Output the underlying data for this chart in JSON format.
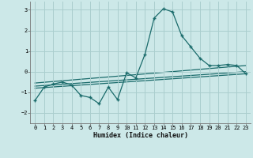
{
  "xlabel": "Humidex (Indice chaleur)",
  "bg_color": "#cce8e8",
  "grid_color": "#aacece",
  "line_color": "#1a6b6b",
  "xlim": [
    -0.5,
    23.5
  ],
  "ylim": [
    -2.5,
    3.4
  ],
  "yticks": [
    -2,
    -1,
    0,
    1,
    2,
    3
  ],
  "xticks": [
    0,
    1,
    2,
    3,
    4,
    5,
    6,
    7,
    8,
    9,
    10,
    11,
    12,
    13,
    14,
    15,
    16,
    17,
    18,
    19,
    20,
    21,
    22,
    23
  ],
  "main_x": [
    0,
    1,
    2,
    3,
    4,
    5,
    6,
    7,
    8,
    9,
    10,
    11,
    12,
    13,
    14,
    15,
    16,
    17,
    18,
    19,
    20,
    21,
    22,
    23
  ],
  "main_y": [
    -1.4,
    -0.75,
    -0.6,
    -0.5,
    -0.65,
    -1.15,
    -1.25,
    -1.55,
    -0.75,
    -1.35,
    -0.05,
    -0.3,
    0.85,
    2.6,
    3.05,
    2.9,
    1.75,
    1.2,
    0.65,
    0.3,
    0.3,
    0.35,
    0.3,
    -0.1
  ],
  "line1_x": [
    0,
    23
  ],
  "line1_y": [
    -0.55,
    0.3
  ],
  "line2_x": [
    0,
    23
  ],
  "line2_y": [
    -0.7,
    0.0
  ],
  "line3_x": [
    0,
    23
  ],
  "line3_y": [
    -0.8,
    -0.1
  ]
}
